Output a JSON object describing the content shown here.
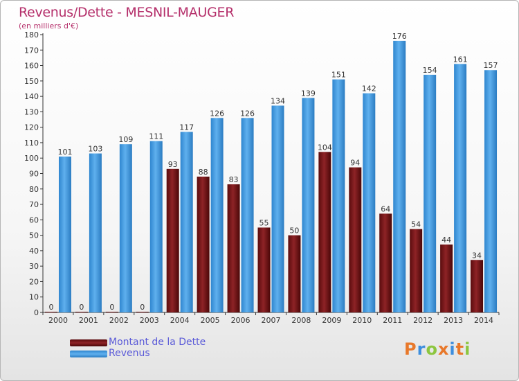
{
  "title": "Revenus/Dette - MESNIL-MAUGER",
  "subtitle": "(en milliers d'€)",
  "logo": {
    "text": "Proxiti"
  },
  "colors": {
    "debt": "#7a1416",
    "revenue": "#3d97de",
    "title": "#b5306b",
    "legend_text": "#5a5ad8"
  },
  "chart_data": {
    "type": "bar",
    "title": "Revenus/Dette - MESNIL-MAUGER",
    "ylabel": "(en milliers d'€)",
    "xlabel": "",
    "ylim": [
      0,
      180
    ],
    "yticks": [
      0,
      10,
      20,
      30,
      40,
      50,
      60,
      70,
      80,
      90,
      100,
      110,
      120,
      130,
      140,
      150,
      160,
      170,
      180
    ],
    "grid": false,
    "legend": "bottom-left",
    "categories": [
      "2000",
      "2001",
      "2002",
      "2003",
      "2004",
      "2005",
      "2006",
      "2007",
      "2008",
      "2009",
      "2010",
      "2011",
      "2012",
      "2013",
      "2014"
    ],
    "series": [
      {
        "name": "Montant de la Dette",
        "values": [
          0,
          0,
          0,
          0,
          93,
          88,
          83,
          55,
          50,
          104,
          94,
          64,
          54,
          44,
          34
        ]
      },
      {
        "name": "Revenus",
        "values": [
          101,
          103,
          109,
          111,
          117,
          126,
          126,
          134,
          139,
          151,
          142,
          176,
          154,
          161,
          157
        ]
      }
    ]
  }
}
